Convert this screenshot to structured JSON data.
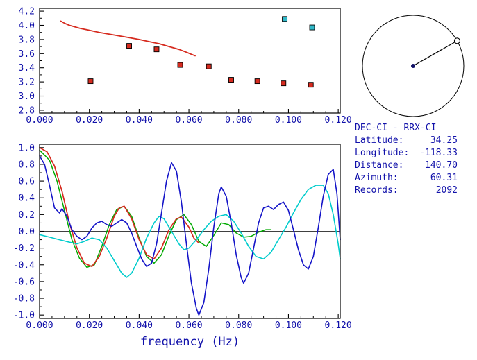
{
  "colors": {
    "frame": "#000000",
    "text": "#1111aa",
    "red": "#d62b1f",
    "green": "#00aa00",
    "blue": "#1414c8",
    "cyan": "#00cccc",
    "cyan_marker": "#30b8c8",
    "marker_edge": "#000000",
    "center_dot": "#111166"
  },
  "station_info": {
    "title": "DEC-CI - RRX-CI",
    "rows": [
      {
        "label": "Latitude:",
        "value": "34.25"
      },
      {
        "label": "Longitude:",
        "value": "-118.33"
      },
      {
        "label": "Distance:",
        "value": "140.70"
      },
      {
        "label": "Azimuth:",
        "value": "60.31"
      },
      {
        "label": "Records:",
        "value": "2092"
      }
    ]
  },
  "azimuth_plot": {
    "azimuth_deg": 60.31
  },
  "chart_data": [
    {
      "name": "dispersion",
      "type": "line",
      "xlim": [
        0,
        0.1208
      ],
      "ylim": [
        2.76,
        4.24
      ],
      "xticks": {
        "values": [
          0,
          0.02,
          0.04,
          0.06,
          0.08,
          0.1,
          0.12
        ],
        "labels": [
          "0.000",
          "0.020",
          "0.040",
          "0.060",
          "0.080",
          "0.100",
          "0.120"
        ]
      },
      "yticks": {
        "values": [
          2.8,
          3.0,
          3.2,
          3.4,
          3.6,
          3.8,
          4.0,
          4.2
        ],
        "labels": [
          "2.8",
          "3.0",
          "3.2",
          "3.4",
          "3.6",
          "3.8",
          "4.0",
          "4.2"
        ]
      },
      "xminor": 0.005,
      "yminor": 0.1,
      "series": [
        {
          "name": "reference-dispersion-curve",
          "kind": "line",
          "color_key": "red",
          "width": 1.8,
          "points": [
            [
              0.0085,
              4.06
            ],
            [
              0.01,
              4.03
            ],
            [
              0.012,
              4.0
            ],
            [
              0.014,
              3.98
            ],
            [
              0.016,
              3.96
            ],
            [
              0.018,
              3.945
            ],
            [
              0.02,
              3.93
            ],
            [
              0.024,
              3.9
            ],
            [
              0.028,
              3.875
            ],
            [
              0.032,
              3.85
            ],
            [
              0.036,
              3.825
            ],
            [
              0.04,
              3.8
            ],
            [
              0.044,
              3.77
            ],
            [
              0.048,
              3.74
            ],
            [
              0.052,
              3.7
            ],
            [
              0.056,
              3.66
            ],
            [
              0.059,
              3.62
            ],
            [
              0.061,
              3.59
            ],
            [
              0.0625,
              3.57
            ]
          ]
        },
        {
          "name": "measured-velocity-red",
          "kind": "scatter",
          "color_key": "red",
          "points": [
            [
              0.0205,
              3.21
            ],
            [
              0.036,
              3.71
            ],
            [
              0.047,
              3.66
            ],
            [
              0.0565,
              3.44
            ],
            [
              0.068,
              3.42
            ],
            [
              0.077,
              3.23
            ],
            [
              0.0875,
              3.21
            ],
            [
              0.098,
              3.18
            ],
            [
              0.109,
              3.16
            ]
          ]
        },
        {
          "name": "measured-velocity-cyan",
          "kind": "scatter",
          "color_key": "cyan_marker",
          "points": [
            [
              0.0985,
              4.09
            ],
            [
              0.1095,
              3.97
            ]
          ]
        }
      ]
    },
    {
      "name": "spectra",
      "type": "line",
      "xlabel": "frequency (Hz)",
      "xlim": [
        0,
        0.1208
      ],
      "ylim": [
        -1.04,
        1.04
      ],
      "zero_line": true,
      "xticks": {
        "values": [
          0,
          0.02,
          0.04,
          0.06,
          0.08,
          0.1,
          0.12
        ],
        "labels": [
          "0.000",
          "0.020",
          "0.040",
          "0.060",
          "0.080",
          "0.100",
          "0.120"
        ]
      },
      "yticks": {
        "values": [
          -1.0,
          -0.8,
          -0.6,
          -0.4,
          -0.2,
          0.0,
          0.2,
          0.4,
          0.6,
          0.8,
          1.0
        ],
        "labels": [
          "-1.0",
          "-0.8",
          "-0.6",
          "-0.4",
          "-0.2",
          "0.0",
          "0.2",
          "0.4",
          "0.6",
          "0.8",
          "1.0"
        ]
      },
      "xminor": 0.005,
      "yminor": 0.1,
      "series": [
        {
          "name": "green-trace",
          "kind": "line",
          "color_key": "green",
          "width": 1.5,
          "points": [
            [
              0,
              0.97
            ],
            [
              0.004,
              0.85
            ],
            [
              0.007,
              0.6
            ],
            [
              0.01,
              0.25
            ],
            [
              0.013,
              -0.1
            ],
            [
              0.016,
              -0.32
            ],
            [
              0.019,
              -0.43
            ],
            [
              0.022,
              -0.4
            ],
            [
              0.025,
              -0.18
            ],
            [
              0.028,
              0.08
            ],
            [
              0.031,
              0.26
            ],
            [
              0.034,
              0.3
            ],
            [
              0.037,
              0.18
            ],
            [
              0.04,
              -0.08
            ],
            [
              0.043,
              -0.3
            ],
            [
              0.046,
              -0.38
            ],
            [
              0.049,
              -0.28
            ],
            [
              0.052,
              -0.05
            ],
            [
              0.055,
              0.14
            ],
            [
              0.058,
              0.2
            ],
            [
              0.061,
              0.08
            ],
            [
              0.064,
              -0.12
            ],
            [
              0.067,
              -0.18
            ],
            [
              0.07,
              -0.05
            ],
            [
              0.073,
              0.1
            ],
            [
              0.076,
              0.08
            ],
            [
              0.079,
              -0.02
            ],
            [
              0.082,
              -0.07
            ],
            [
              0.085,
              -0.06
            ],
            [
              0.088,
              -0.01
            ],
            [
              0.091,
              0.02
            ],
            [
              0.093,
              0.02
            ]
          ]
        },
        {
          "name": "red-trace",
          "kind": "line",
          "color_key": "red",
          "width": 1.7,
          "points": [
            [
              0,
              1.0
            ],
            [
              0.003,
              0.95
            ],
            [
              0.006,
              0.78
            ],
            [
              0.009,
              0.48
            ],
            [
              0.012,
              0.1
            ],
            [
              0.015,
              -0.2
            ],
            [
              0.018,
              -0.38
            ],
            [
              0.021,
              -0.42
            ],
            [
              0.024,
              -0.3
            ],
            [
              0.027,
              -0.08
            ],
            [
              0.03,
              0.18
            ],
            [
              0.032,
              0.28
            ],
            [
              0.034,
              0.3
            ],
            [
              0.037,
              0.15
            ],
            [
              0.04,
              -0.1
            ],
            [
              0.043,
              -0.28
            ],
            [
              0.046,
              -0.33
            ],
            [
              0.049,
              -0.2
            ],
            [
              0.052,
              0.02
            ],
            [
              0.055,
              0.15
            ],
            [
              0.057,
              0.17
            ],
            [
              0.06,
              0.05
            ],
            [
              0.062,
              -0.08
            ],
            [
              0.064,
              -0.14
            ]
          ]
        },
        {
          "name": "cyan-trace",
          "kind": "line",
          "color_key": "cyan",
          "width": 1.6,
          "points": [
            [
              0,
              -0.04
            ],
            [
              0.004,
              -0.07
            ],
            [
              0.008,
              -0.1
            ],
            [
              0.012,
              -0.13
            ],
            [
              0.015,
              -0.15
            ],
            [
              0.018,
              -0.12
            ],
            [
              0.021,
              -0.08
            ],
            [
              0.024,
              -0.1
            ],
            [
              0.027,
              -0.2
            ],
            [
              0.03,
              -0.35
            ],
            [
              0.033,
              -0.5
            ],
            [
              0.035,
              -0.55
            ],
            [
              0.037,
              -0.5
            ],
            [
              0.04,
              -0.32
            ],
            [
              0.043,
              -0.08
            ],
            [
              0.046,
              0.1
            ],
            [
              0.048,
              0.18
            ],
            [
              0.05,
              0.15
            ],
            [
              0.053,
              0
            ],
            [
              0.056,
              -0.15
            ],
            [
              0.058,
              -0.22
            ],
            [
              0.06,
              -0.2
            ],
            [
              0.063,
              -0.1
            ],
            [
              0.066,
              0.02
            ],
            [
              0.069,
              0.12
            ],
            [
              0.072,
              0.18
            ],
            [
              0.075,
              0.2
            ],
            [
              0.078,
              0.12
            ],
            [
              0.081,
              -0.02
            ],
            [
              0.084,
              -0.18
            ],
            [
              0.087,
              -0.3
            ],
            [
              0.09,
              -0.33
            ],
            [
              0.093,
              -0.25
            ],
            [
              0.096,
              -0.1
            ],
            [
              0.099,
              0.05
            ],
            [
              0.102,
              0.22
            ],
            [
              0.105,
              0.38
            ],
            [
              0.108,
              0.5
            ],
            [
              0.111,
              0.55
            ],
            [
              0.114,
              0.55
            ],
            [
              0.116,
              0.45
            ],
            [
              0.118,
              0.2
            ],
            [
              0.12,
              -0.15
            ],
            [
              0.1208,
              -0.33
            ]
          ]
        },
        {
          "name": "blue-trace",
          "kind": "line",
          "color_key": "blue",
          "width": 1.6,
          "points": [
            [
              0,
              0.9
            ],
            [
              0.002,
              0.8
            ],
            [
              0.004,
              0.55
            ],
            [
              0.006,
              0.28
            ],
            [
              0.008,
              0.22
            ],
            [
              0.009,
              0.27
            ],
            [
              0.011,
              0.18
            ],
            [
              0.013,
              0.02
            ],
            [
              0.015,
              -0.06
            ],
            [
              0.017,
              -0.1
            ],
            [
              0.019,
              -0.06
            ],
            [
              0.021,
              0.04
            ],
            [
              0.023,
              0.1
            ],
            [
              0.025,
              0.12
            ],
            [
              0.027,
              0.08
            ],
            [
              0.029,
              0.06
            ],
            [
              0.031,
              0.1
            ],
            [
              0.033,
              0.14
            ],
            [
              0.035,
              0.1
            ],
            [
              0.037,
              -0.02
            ],
            [
              0.039,
              -0.18
            ],
            [
              0.041,
              -0.33
            ],
            [
              0.043,
              -0.42
            ],
            [
              0.045,
              -0.38
            ],
            [
              0.047,
              -0.15
            ],
            [
              0.049,
              0.22
            ],
            [
              0.051,
              0.6
            ],
            [
              0.053,
              0.82
            ],
            [
              0.055,
              0.72
            ],
            [
              0.057,
              0.35
            ],
            [
              0.059,
              -0.15
            ],
            [
              0.061,
              -0.62
            ],
            [
              0.063,
              -0.92
            ],
            [
              0.064,
              -1.0
            ],
            [
              0.066,
              -0.85
            ],
            [
              0.068,
              -0.45
            ],
            [
              0.07,
              0.05
            ],
            [
              0.072,
              0.45
            ],
            [
              0.073,
              0.53
            ],
            [
              0.075,
              0.42
            ],
            [
              0.077,
              0.1
            ],
            [
              0.079,
              -0.28
            ],
            [
              0.081,
              -0.55
            ],
            [
              0.082,
              -0.62
            ],
            [
              0.084,
              -0.5
            ],
            [
              0.086,
              -0.2
            ],
            [
              0.088,
              0.1
            ],
            [
              0.09,
              0.28
            ],
            [
              0.092,
              0.3
            ],
            [
              0.094,
              0.26
            ],
            [
              0.096,
              0.32
            ],
            [
              0.098,
              0.35
            ],
            [
              0.1,
              0.25
            ],
            [
              0.102,
              0.02
            ],
            [
              0.104,
              -0.22
            ],
            [
              0.106,
              -0.4
            ],
            [
              0.108,
              -0.45
            ],
            [
              0.11,
              -0.3
            ],
            [
              0.112,
              0.05
            ],
            [
              0.114,
              0.42
            ],
            [
              0.116,
              0.68
            ],
            [
              0.118,
              0.74
            ],
            [
              0.1195,
              0.45
            ],
            [
              0.1208,
              -0.1
            ]
          ]
        }
      ]
    }
  ]
}
